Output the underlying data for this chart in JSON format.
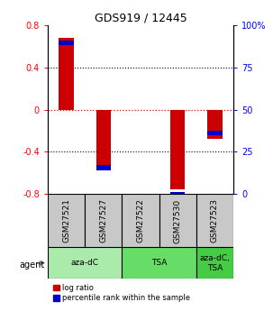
{
  "title": "GDS919 / 12445",
  "samples": [
    "GSM27521",
    "GSM27527",
    "GSM27522",
    "GSM27530",
    "GSM27523"
  ],
  "log_ratios": [
    0.68,
    -0.52,
    0.0,
    -0.75,
    -0.28
  ],
  "percentile_ranks": [
    0.63,
    -0.55,
    0.0,
    -0.8,
    -0.22
  ],
  "ylim": [
    -0.8,
    0.8
  ],
  "yticks_left": [
    -0.8,
    -0.4,
    0.0,
    0.4,
    0.8
  ],
  "yticks_right_vals": [
    0,
    25,
    50,
    75,
    100
  ],
  "yticks_right_pos": [
    -0.8,
    -0.4,
    0.0,
    0.4,
    0.8
  ],
  "bar_color": "#cc0000",
  "pct_color": "#0000cc",
  "sample_bg": "#c8c8c8",
  "agent_defs": [
    {
      "start": 0,
      "end": 1,
      "label": "aza-dC",
      "color": "#aaeaaa"
    },
    {
      "start": 2,
      "end": 3,
      "label": "TSA",
      "color": "#66dd66"
    },
    {
      "start": 4,
      "end": 4,
      "label": "aza-dC,\nTSA",
      "color": "#44cc44"
    }
  ],
  "bar_width": 0.4
}
